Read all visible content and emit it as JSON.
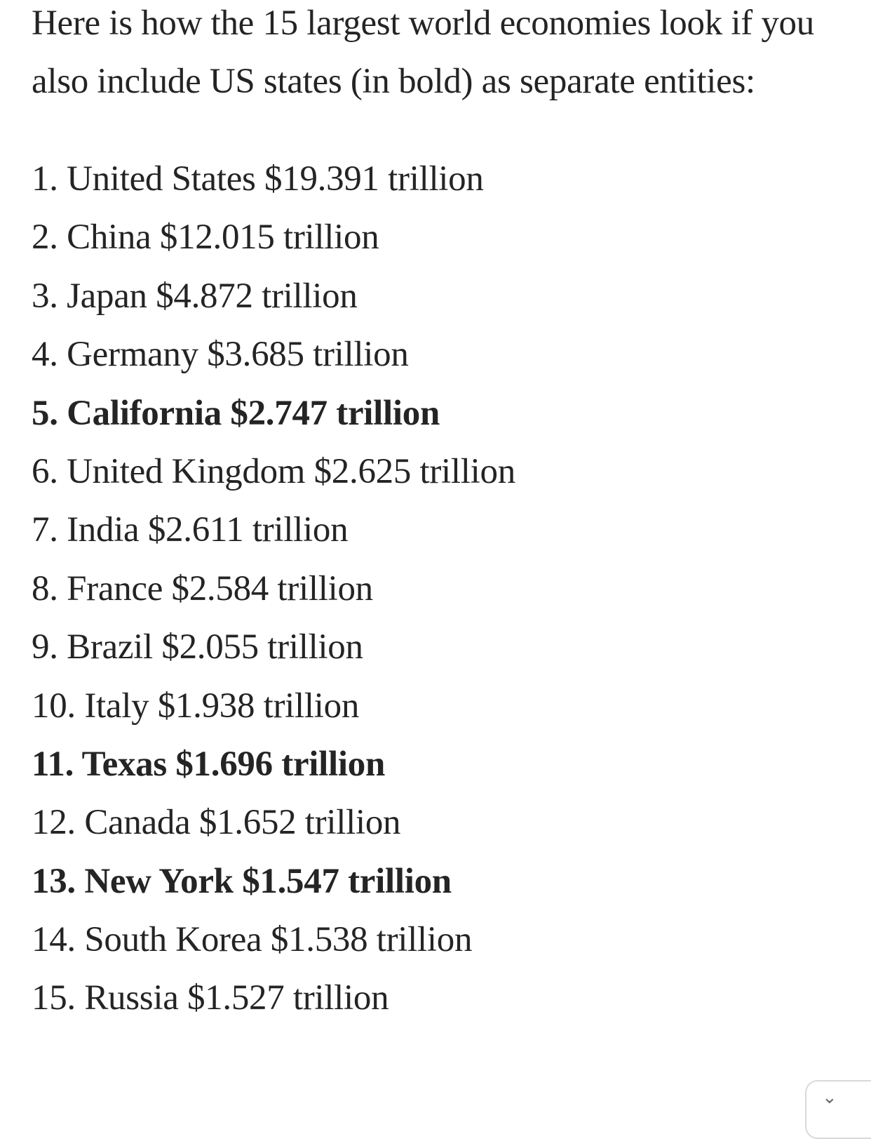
{
  "article": {
    "intro": "Here is how the 15 largest world economies look if you also include US states (in bold) as separate entities:",
    "ranking": [
      {
        "rank": "1.",
        "name": "United States",
        "value": "$19.391 trillion",
        "is_us_state": false
      },
      {
        "rank": "2.",
        "name": "China",
        "value": "$12.015 trillion",
        "is_us_state": false
      },
      {
        "rank": "3.",
        "name": "Japan",
        "value": "$4.872 trillion",
        "is_us_state": false
      },
      {
        "rank": "4.",
        "name": "Germany",
        "value": "$3.685 trillion",
        "is_us_state": false
      },
      {
        "rank": "5.",
        "name": "California",
        "value": "$2.747 trillion",
        "is_us_state": true
      },
      {
        "rank": "6.",
        "name": "United Kingdom",
        "value": "$2.625 trillion",
        "is_us_state": false
      },
      {
        "rank": "7.",
        "name": "India",
        "value": "$2.611 trillion",
        "is_us_state": false
      },
      {
        "rank": "8.",
        "name": "France",
        "value": "$2.584 trillion",
        "is_us_state": false
      },
      {
        "rank": "9.",
        "name": "Brazil",
        "value": "$2.055 trillion",
        "is_us_state": false
      },
      {
        "rank": "10.",
        "name": "Italy",
        "value": "$1.938 trillion",
        "is_us_state": false
      },
      {
        "rank": "11.",
        "name": "Texas",
        "value": "$1.696 trillion",
        "is_us_state": true
      },
      {
        "rank": "12.",
        "name": "Canada",
        "value": "$1.652 trillion",
        "is_us_state": false
      },
      {
        "rank": "13.",
        "name": "New York",
        "value": "$1.547 trillion",
        "is_us_state": true
      },
      {
        "rank": "14.",
        "name": "South Korea",
        "value": "$1.538 trillion",
        "is_us_state": false
      },
      {
        "rank": "15.",
        "name": "Russia",
        "value": "$1.527 trillion",
        "is_us_state": false
      }
    ]
  },
  "colors": {
    "text": "#242424",
    "background": "#ffffff"
  },
  "widget": {
    "icon": "chevron-icon"
  }
}
